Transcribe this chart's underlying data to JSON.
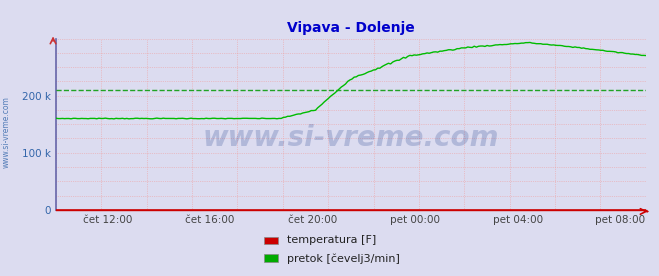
{
  "title": "Vipava - Dolenje",
  "title_color": "#0000cc",
  "bg_color": "#dcdcf0",
  "plot_bg_color": "#dcdcf0",
  "ytick_labels": [
    "0",
    "100 k",
    "200 k"
  ],
  "ytick_values": [
    0,
    100000,
    200000
  ],
  "ylim": [
    0,
    300000
  ],
  "dashed_line_y": 210000,
  "dashed_line_color": "#009900",
  "watermark": "www.si-vreme.com",
  "watermark_color": "#1a3a8a",
  "watermark_alpha": 0.22,
  "xtick_labels": [
    "čet 12:00",
    "čet 16:00",
    "čet 20:00",
    "pet 00:00",
    "pet 04:00",
    "pet 08:00"
  ],
  "xlabel_color": "#444444",
  "ylabel_color": "#3366aa",
  "legend_items": [
    {
      "label": "temperatura [F]",
      "color": "#cc0000"
    },
    {
      "label": "pretok [čevelj3/min]",
      "color": "#00aa00"
    }
  ],
  "line_color_pretok": "#00bb00",
  "line_color_temp": "#cc0000",
  "sidebar_text": "www.si-vreme.com",
  "sidebar_color": "#3366aa",
  "spine_left_color": "#6666aa",
  "spine_bottom_color": "#cc0000",
  "vgrid_color": "#f0a0a0",
  "hgrid_color": "#f0a0a0"
}
